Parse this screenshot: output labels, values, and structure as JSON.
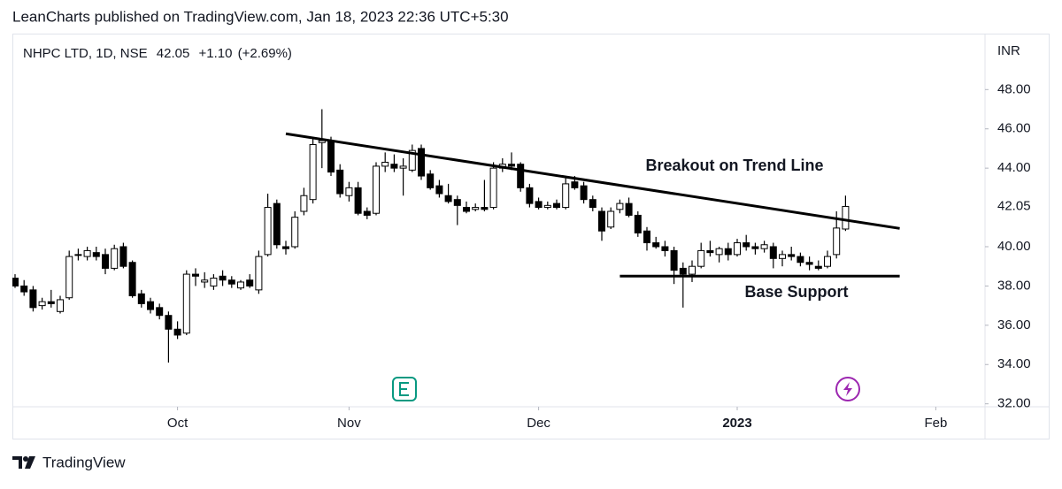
{
  "header": "LeanCharts published on TradingView.com, Jan 18, 2023 22:36 UTC+5:30",
  "footer": "TradingView",
  "chart_data": {
    "type": "candlestick",
    "symbol": "NHPC LTD, 1D, NSE",
    "last": 42.05,
    "change": {
      "value": 1.1,
      "label": "+1.10"
    },
    "change_percent": {
      "value": 2.69,
      "label": "(+2.69%)"
    },
    "y_unit": "INR",
    "up_color": "#ffffff",
    "down_color": "#000000",
    "border_color": "#000000",
    "categories": [
      null,
      null,
      null,
      null,
      null,
      null,
      null,
      null,
      null,
      null,
      null,
      null,
      null,
      null,
      null,
      null,
      null,
      null,
      "Oct",
      null,
      null,
      null,
      null,
      null,
      null,
      null,
      null,
      null,
      null,
      null,
      null,
      null,
      null,
      null,
      null,
      null,
      null,
      "Nov",
      null,
      null,
      null,
      null,
      null,
      null,
      null,
      null,
      null,
      null,
      null,
      null,
      null,
      null,
      null,
      null,
      null,
      null,
      null,
      null,
      "Dec",
      null,
      null,
      null,
      null,
      null,
      null,
      null,
      null,
      null,
      null,
      null,
      null,
      null,
      null,
      null,
      null,
      null,
      null,
      null,
      null,
      null,
      "2023",
      null,
      null,
      null,
      null,
      null,
      null,
      null,
      null,
      null,
      null,
      null,
      null,
      null,
      null,
      null,
      null,
      null,
      null,
      null,
      null,
      null,
      "Feb",
      null,
      null,
      null,
      null,
      null
    ],
    "open": [
      38.4,
      38.0,
      37.8,
      37.0,
      37.2,
      36.7,
      37.4,
      39.6,
      39.5,
      39.7,
      39.6,
      38.9,
      40.0,
      39.2,
      37.6,
      37.2,
      36.9,
      36.5,
      35.8,
      35.6,
      38.6,
      38.2,
      38.0,
      38.5,
      38.3,
      37.9,
      38.3,
      37.8,
      39.6,
      42.2,
      40.0,
      40.0,
      41.8,
      42.4,
      45.3,
      45.4,
      43.9,
      42.6,
      43.0,
      41.8,
      41.7,
      44.1,
      44.2,
      44.0,
      43.9,
      45.0,
      43.7,
      43.1,
      42.6,
      42.4,
      42.0,
      41.9,
      42.0,
      42.0,
      44.0,
      44.2,
      44.2,
      43.0,
      42.3,
      42.0,
      42.2,
      42.0,
      43.3,
      43.1,
      42.4,
      41.8,
      41.0,
      41.9,
      42.2,
      41.6,
      40.8,
      40.2,
      40.0,
      39.8,
      38.9,
      38.6,
      39.0,
      39.8,
      39.6,
      39.9,
      39.6,
      40.2,
      40.0,
      39.9,
      40.0,
      39.4,
      39.6,
      39.5,
      39.2,
      39.0,
      39.0,
      39.6,
      40.9,
      null,
      null,
      null,
      null,
      null,
      null,
      null,
      null,
      null,
      null,
      null,
      null,
      null,
      null,
      null
    ],
    "high": [
      38.6,
      38.3,
      38.0,
      37.4,
      37.8,
      37.5,
      39.8,
      39.9,
      40.0,
      40.0,
      39.9,
      40.1,
      40.2,
      39.3,
      37.8,
      37.4,
      37.1,
      36.7,
      36.2,
      38.8,
      38.9,
      38.7,
      38.6,
      38.8,
      38.5,
      38.3,
      38.6,
      39.8,
      42.7,
      42.4,
      40.3,
      41.8,
      43.0,
      45.6,
      47.0,
      45.6,
      44.2,
      43.3,
      43.3,
      42.0,
      44.3,
      44.8,
      44.7,
      44.5,
      45.2,
      45.2,
      43.9,
      43.4,
      43.2,
      42.6,
      42.3,
      42.2,
      43.4,
      44.3,
      44.5,
      44.8,
      44.3,
      43.2,
      42.5,
      42.3,
      42.4,
      43.5,
      43.6,
      43.3,
      42.6,
      42.0,
      42.0,
      42.4,
      42.5,
      41.8,
      41.0,
      40.5,
      40.3,
      40.0,
      39.2,
      39.3,
      40.2,
      40.3,
      40.0,
      40.2,
      40.4,
      40.6,
      40.2,
      40.3,
      40.2,
      39.8,
      40.0,
      39.7,
      39.5,
      39.3,
      39.8,
      41.8,
      42.6,
      null,
      null,
      null,
      null,
      null,
      null,
      null,
      null,
      null,
      null,
      null,
      null,
      null,
      null,
      null
    ],
    "low": [
      37.9,
      37.5,
      36.7,
      36.8,
      36.9,
      36.6,
      37.3,
      39.3,
      39.3,
      39.3,
      38.6,
      38.8,
      38.9,
      37.4,
      36.9,
      36.6,
      36.3,
      34.1,
      35.3,
      35.5,
      38.0,
      37.9,
      37.8,
      38.0,
      37.9,
      37.8,
      37.9,
      37.6,
      39.5,
      39.9,
      39.6,
      39.9,
      41.6,
      42.2,
      44.0,
      43.6,
      42.5,
      42.3,
      41.6,
      41.4,
      41.6,
      43.8,
      43.8,
      42.6,
      43.8,
      43.4,
      42.9,
      42.5,
      42.2,
      41.1,
      41.7,
      41.8,
      41.8,
      41.9,
      43.8,
      43.9,
      42.8,
      42.0,
      41.9,
      41.9,
      41.9,
      41.9,
      42.9,
      42.2,
      41.8,
      40.3,
      40.9,
      41.7,
      41.5,
      40.5,
      39.8,
      39.9,
      39.5,
      38.1,
      36.9,
      38.2,
      38.9,
      39.5,
      39.2,
      39.3,
      39.5,
      39.8,
      39.6,
      39.7,
      38.9,
      39.0,
      39.3,
      39.0,
      38.8,
      38.8,
      38.9,
      39.4,
      40.8,
      null,
      null,
      null,
      null,
      null,
      null,
      null,
      null,
      null,
      null,
      null,
      null,
      null,
      null,
      null
    ],
    "close": [
      38.0,
      37.7,
      36.9,
      37.2,
      37.1,
      37.3,
      39.5,
      39.6,
      39.8,
      39.5,
      38.9,
      39.9,
      39.0,
      37.5,
      37.1,
      36.8,
      36.5,
      35.8,
      35.5,
      38.6,
      38.5,
      38.3,
      38.4,
      38.3,
      38.1,
      38.2,
      38.0,
      39.5,
      42.0,
      40.1,
      39.9,
      41.5,
      42.6,
      45.2,
      45.4,
      43.8,
      42.7,
      43.0,
      41.7,
      41.6,
      44.1,
      44.3,
      44.0,
      44.1,
      44.9,
      43.6,
      43.0,
      42.7,
      42.3,
      42.1,
      41.8,
      42.0,
      41.9,
      44.0,
      44.2,
      44.1,
      43.0,
      42.2,
      42.0,
      42.1,
      42.0,
      43.2,
      43.0,
      42.4,
      42.0,
      40.8,
      41.8,
      42.2,
      41.6,
      40.7,
      40.2,
      40.0,
      39.8,
      38.8,
      38.6,
      39.0,
      39.8,
      39.7,
      39.9,
      39.6,
      40.2,
      40.0,
      39.9,
      40.1,
      39.4,
      39.6,
      39.5,
      39.2,
      39.1,
      38.9,
      39.5,
      40.95,
      42.05,
      null,
      null,
      null,
      null,
      null,
      null,
      null,
      null,
      null,
      null,
      null,
      null,
      null,
      null,
      null
    ],
    "ylim": [
      31.85,
      50.85
    ],
    "yticks": [
      {
        "value": 32,
        "label": "32.00"
      },
      {
        "value": 34,
        "label": "34.00"
      },
      {
        "value": 36,
        "label": "36.00"
      },
      {
        "value": 38,
        "label": "38.00"
      },
      {
        "value": 40,
        "label": "40.00"
      },
      {
        "value": 44,
        "label": "44.00"
      },
      {
        "value": 46,
        "label": "46.00"
      },
      {
        "value": 48,
        "label": "48.00"
      }
    ],
    "trend_lines": [
      {
        "x": [
          30,
          98
        ],
        "y": [
          45.75,
          40.93
        ]
      },
      {
        "x": [
          67,
          98
        ],
        "y": [
          38.5,
          38.5
        ]
      }
    ],
    "annotations": [
      "Breakout on Trend Line",
      "Base Support"
    ]
  }
}
